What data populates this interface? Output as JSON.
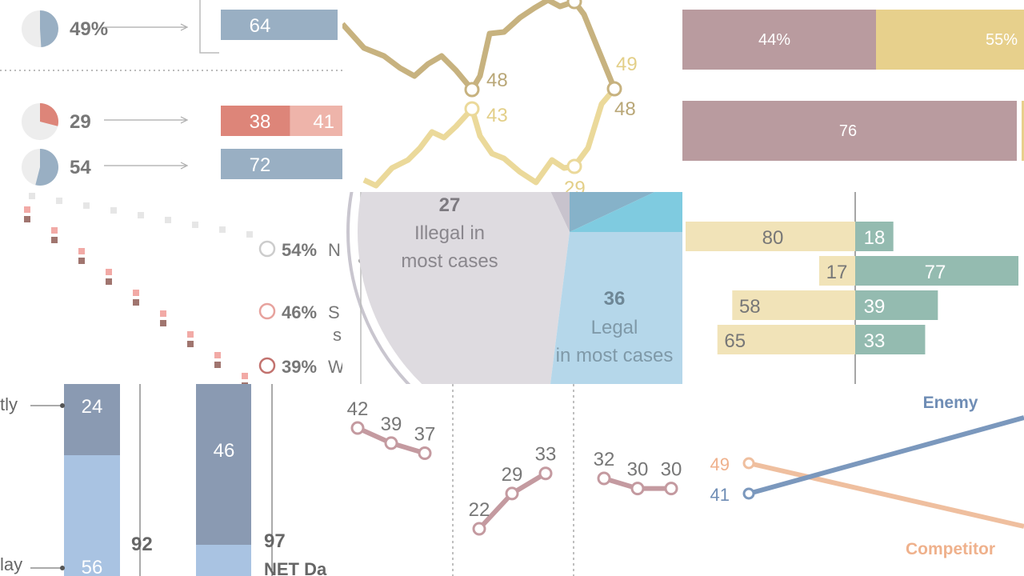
{
  "colors": {
    "gold_dark": "#c7b27f",
    "gold_light": "#ebd99a",
    "slate_blue": "#99afc3",
    "red": "#dd8579",
    "red_light": "#eeb4aa",
    "mauve": "#b99b9f",
    "mustard": "#e7d08c",
    "pie_gray": "#dedbe0",
    "pie_blue": "#b5d7ea",
    "pie_teal": "#86b2c9",
    "pie_cyan": "#7fcbe0",
    "tan": "#f1e3b8",
    "teal_green": "#94bbb0",
    "bar_dark": "#8a9ab2",
    "bar_light": "#a9c3e2",
    "rose_line": "#c49aa0",
    "enemy_blue": "#7b98bd",
    "competitor_orange": "#efbf9f",
    "text_gray": "#777777"
  },
  "chart_data": [
    {
      "panel": "top-left pies and bars",
      "type": "bar",
      "pies": [
        {
          "label": "49%",
          "value": 49,
          "color": "slate_blue"
        },
        {
          "label": "29",
          "value": 29,
          "color": "red"
        },
        {
          "label": "54",
          "value": 54,
          "color": "slate_blue"
        }
      ],
      "bars": [
        {
          "values": [
            64
          ],
          "labels": [
            "64"
          ]
        },
        {
          "values": [
            38,
            41
          ],
          "labels": [
            "38",
            "41"
          ]
        },
        {
          "values": [
            72
          ],
          "labels": [
            "72"
          ]
        }
      ]
    },
    {
      "panel": "top-middle trend lines",
      "type": "line",
      "series": [
        {
          "color": "gold_dark",
          "labels": [
            "48",
            "48"
          ]
        },
        {
          "color": "gold_light",
          "labels": [
            "43",
            "29",
            "49"
          ]
        }
      ]
    },
    {
      "panel": "top-right stacked bars",
      "type": "bar",
      "rows": [
        {
          "segments": [
            {
              "value": 44,
              "label": "44%"
            },
            {
              "value": 55,
              "label": "55%"
            }
          ]
        },
        {
          "segments": [
            {
              "value": 76,
              "label": "76"
            }
          ]
        }
      ]
    },
    {
      "panel": "middle-left dot pattern",
      "type": "scatter",
      "legend": [
        {
          "pct": "54%",
          "text": "N"
        },
        {
          "pct": "46%",
          "text": "S",
          "text2": "s"
        },
        {
          "pct": "39%",
          "text": "W"
        }
      ]
    },
    {
      "panel": "middle pie",
      "type": "pie",
      "slices": [
        {
          "value": 27,
          "number": "27",
          "label_line1": "Illegal in",
          "label_line2": "most cases"
        },
        {
          "value": 36,
          "number": "36",
          "label_line1": "Legal",
          "label_line2": "in most cases"
        }
      ]
    },
    {
      "panel": "middle-right diverging bars",
      "type": "bar",
      "rows": [
        {
          "left": 80,
          "right": 18
        },
        {
          "left": 17,
          "right": 77
        },
        {
          "left": 58,
          "right": 39
        },
        {
          "left": 65,
          "right": 33
        }
      ]
    },
    {
      "panel": "bottom-left stacked columns",
      "type": "bar",
      "row_labels": [
        "tly",
        "lay"
      ],
      "columns": [
        {
          "top": 24,
          "bottom": 56,
          "total": "92"
        },
        {
          "top": 46,
          "total": "97",
          "total_label": "NET Da"
        }
      ]
    },
    {
      "panel": "bottom-middle slope lines",
      "type": "line",
      "groups": [
        {
          "values": [
            42,
            39,
            37
          ]
        },
        {
          "values": [
            22,
            29,
            33
          ]
        },
        {
          "values": [
            32,
            30,
            30
          ]
        }
      ]
    },
    {
      "panel": "bottom-right slope chart",
      "type": "line",
      "series": [
        {
          "name": "Enemy",
          "start": 41
        },
        {
          "name": "Competitor",
          "start": 49
        }
      ]
    }
  ]
}
